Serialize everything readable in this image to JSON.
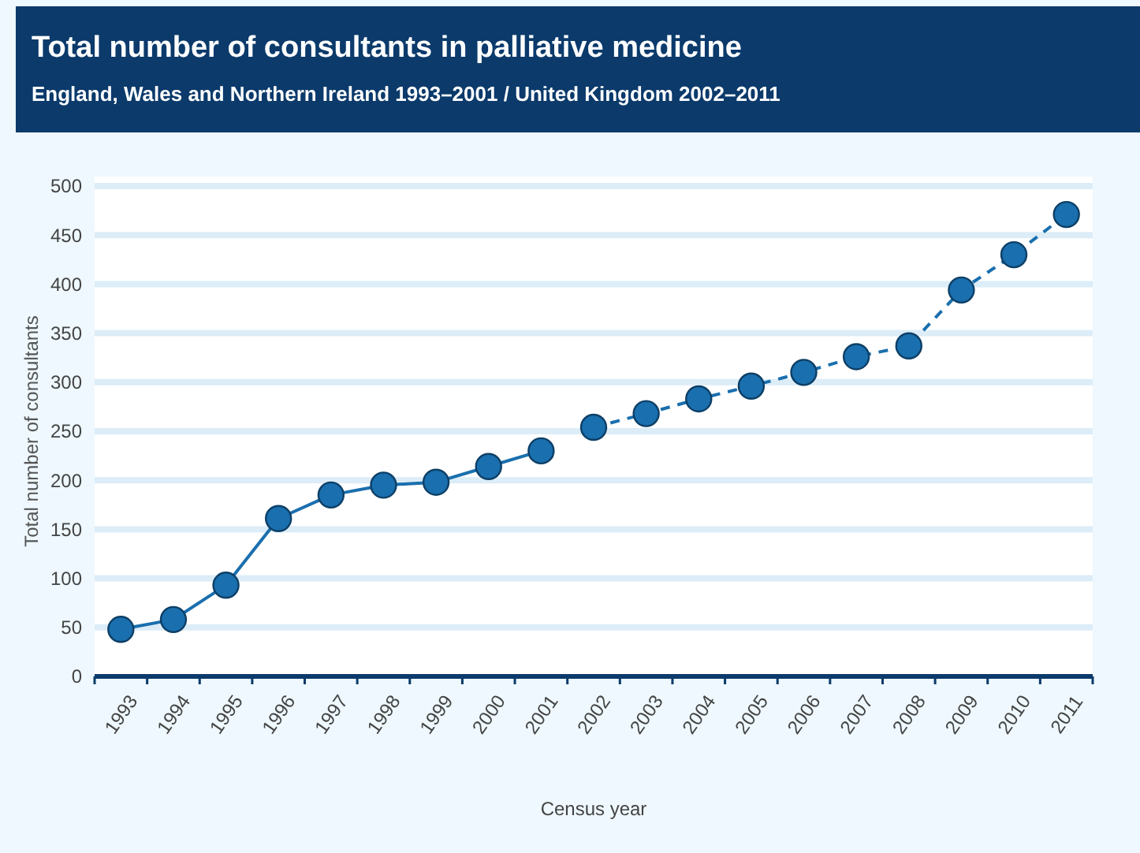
{
  "chart_data": {
    "type": "line",
    "title": "Total number of consultants in palliative medicine",
    "subtitle": "England, Wales and Northern Ireland 1993–2001 / United Kingdom 2002–2011",
    "xlabel": "Census year",
    "ylabel": "Total number of consultants",
    "categories": [
      "1993",
      "1994",
      "1995",
      "1996",
      "1997",
      "1998",
      "1999",
      "2000",
      "2001",
      "2002",
      "2003",
      "2004",
      "2005",
      "2006",
      "2007",
      "2008",
      "2009",
      "2010",
      "2011"
    ],
    "series": [
      {
        "color": "#1a6fae",
        "line_style": "solid",
        "values": [
          48,
          58,
          93,
          161,
          185,
          195,
          198,
          214,
          230,
          null,
          null,
          null,
          null,
          null,
          null,
          null,
          null,
          null,
          null
        ]
      },
      {
        "color": "#1a6fae",
        "line_style": "dashed",
        "values": [
          null,
          null,
          null,
          null,
          null,
          null,
          null,
          null,
          null,
          254,
          268,
          283,
          296,
          310,
          326,
          337,
          394,
          430,
          471
        ]
      }
    ],
    "ylim": [
      0,
      500
    ],
    "yticks": [
      0,
      50,
      100,
      150,
      200,
      250,
      300,
      350,
      400,
      450,
      500
    ],
    "grid": "y",
    "marker": "circle"
  }
}
